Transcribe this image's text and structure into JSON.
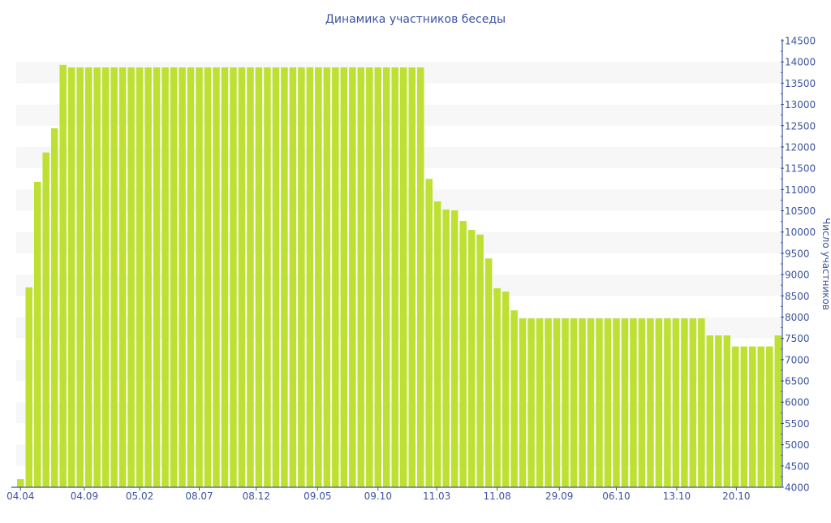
{
  "chart_data": {
    "type": "bar",
    "title": "Динамика участников беседы",
    "xlabel": "",
    "ylabel": "Число участников",
    "ylim": [
      4000,
      14500
    ],
    "y_ticks": [
      4000,
      4500,
      5000,
      5500,
      6000,
      6500,
      7000,
      7500,
      8000,
      8500,
      9000,
      9500,
      10000,
      10500,
      11000,
      11500,
      12000,
      12500,
      13000,
      13500,
      14000,
      14500
    ],
    "x_tick_labels": [
      {
        "index": 0,
        "label": "04.04"
      },
      {
        "index": 7.5,
        "label": "04.09"
      },
      {
        "index": 14,
        "label": "05.02"
      },
      {
        "index": 21,
        "label": "08.07"
      },
      {
        "index": 27.7,
        "label": "08.12"
      },
      {
        "index": 34.9,
        "label": "09.05"
      },
      {
        "index": 42,
        "label": "09.10"
      },
      {
        "index": 48.9,
        "label": "11.03"
      },
      {
        "index": 56,
        "label": "11.08"
      },
      {
        "index": 63.3,
        "label": "29.09"
      },
      {
        "index": 70,
        "label": "06.10"
      },
      {
        "index": 77.1,
        "label": "13.10"
      },
      {
        "index": 84.1,
        "label": "20.10"
      }
    ],
    "grid": "alternating horizontal bands",
    "y_axis_position": "right",
    "values": [
      4190,
      8700,
      11180,
      11870,
      12440,
      13930,
      13870,
      13870,
      13870,
      13870,
      13870,
      13870,
      13870,
      13870,
      13870,
      13870,
      13870,
      13870,
      13870,
      13870,
      13870,
      13870,
      13870,
      13870,
      13870,
      13870,
      13870,
      13870,
      13870,
      13870,
      13870,
      13870,
      13870,
      13870,
      13870,
      13870,
      13870,
      13870,
      13870,
      13870,
      13870,
      13870,
      13870,
      13870,
      13870,
      13870,
      13870,
      13870,
      11250,
      10720,
      10530,
      10510,
      10260,
      10050,
      9940,
      9380,
      8680,
      8600,
      8160,
      7970,
      7970,
      7970,
      7970,
      7970,
      7970,
      7970,
      7970,
      7970,
      7970,
      7970,
      7970,
      7970,
      7970,
      7970,
      7970,
      7970,
      7970,
      7970,
      7970,
      7970,
      7970,
      7570,
      7570,
      7570,
      7310,
      7310,
      7310,
      7310,
      7310,
      7570
    ],
    "colors": {
      "bar": "#bde032",
      "axis": "#3d54a0",
      "band": "#f7f7f7"
    }
  }
}
